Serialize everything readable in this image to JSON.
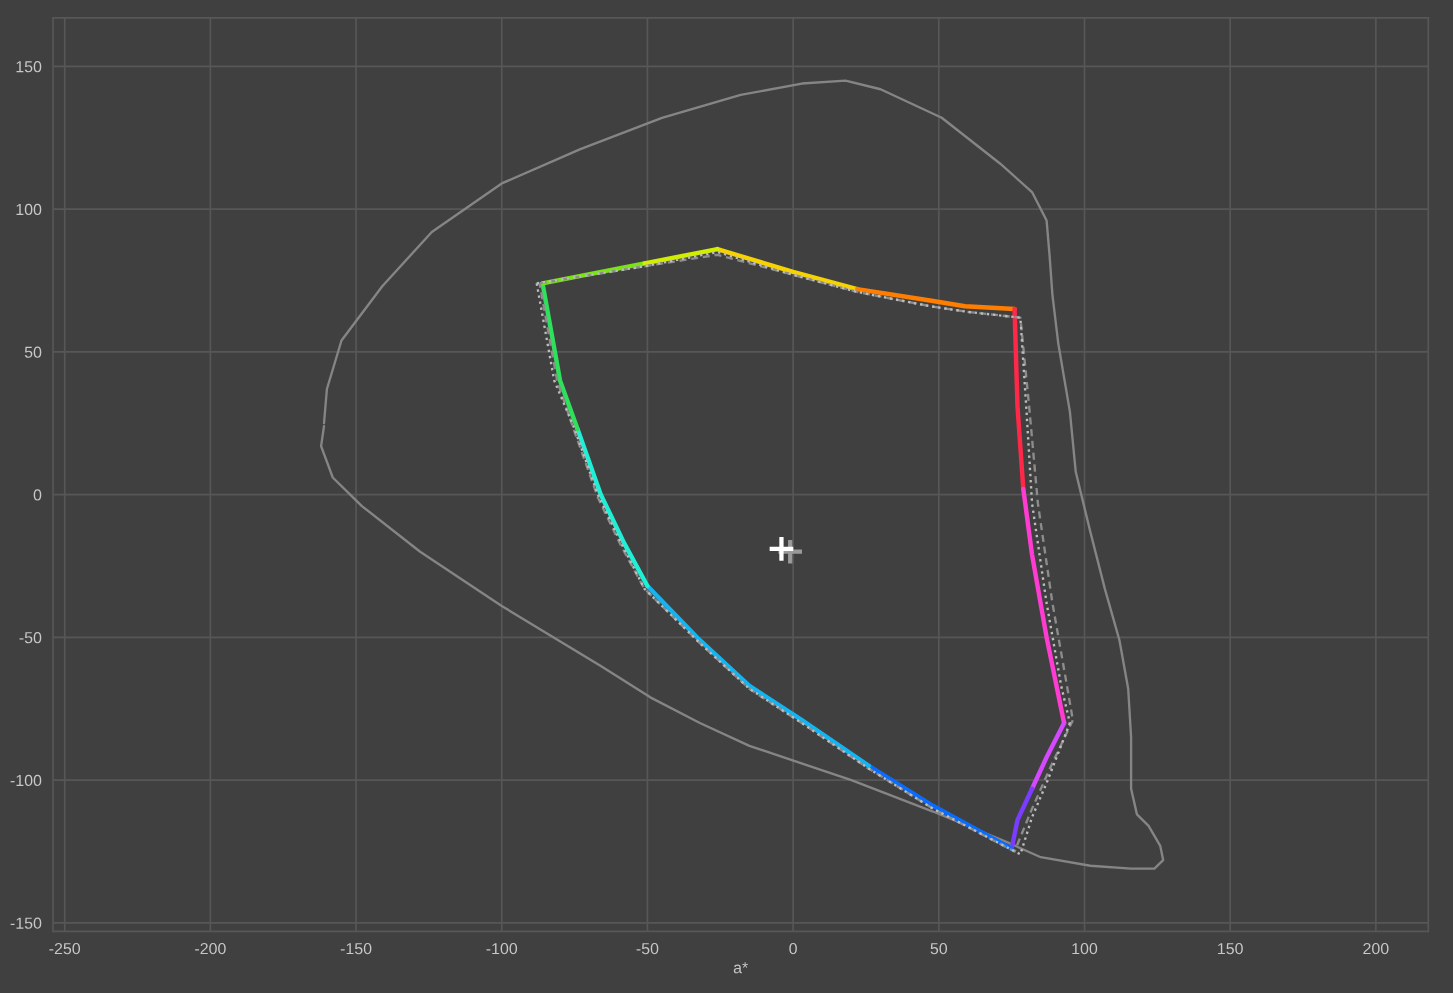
{
  "chart_data": {
    "type": "line",
    "xlabel": "a*",
    "xlim": [
      -254,
      218
    ],
    "ylim": [
      -153,
      167
    ],
    "xticks": [
      -250,
      -200,
      -150,
      -100,
      -50,
      0,
      50,
      100,
      150,
      200
    ],
    "yticks": [
      -150,
      -100,
      -50,
      0,
      50,
      100,
      150
    ],
    "grid": true,
    "series": [
      {
        "color": "#858585",
        "line_style": "solid",
        "x": [
          -161,
          -160,
          -155,
          -141,
          -124,
          -100,
          -73,
          -45,
          -18,
          3,
          18,
          30,
          51,
          71,
          82,
          87,
          88,
          89,
          91,
          95,
          97,
          102,
          107,
          112,
          115,
          116,
          116,
          118,
          122,
          126,
          127,
          124,
          116,
          102,
          85,
          74,
          48,
          20,
          -15,
          -32,
          -49,
          -66,
          -100,
          -128,
          -148,
          -158,
          -162,
          -161
        ],
        "values": [
          25,
          37,
          54,
          73,
          92,
          109,
          121,
          132,
          140,
          144,
          145,
          142,
          132,
          116,
          106,
          96,
          84,
          70,
          53,
          29,
          8,
          -13,
          -33,
          -51,
          -68,
          -85,
          -103,
          -112,
          -116,
          -123,
          -128,
          -131,
          -131,
          -130,
          -127,
          -122,
          -111,
          -100,
          -88,
          -80,
          -71,
          -60,
          -39,
          -20,
          -4,
          6,
          17,
          24
        ]
      },
      {
        "color": "#f5d200",
        "line_style": "solid",
        "x": [
          -26,
          0,
          22
        ],
        "values": [
          86,
          78,
          72
        ]
      },
      {
        "color": "#ff7e00",
        "line_style": "solid",
        "x": [
          22,
          47,
          59,
          76
        ],
        "values": [
          72,
          68,
          66,
          65
        ]
      },
      {
        "color": "#ff2848",
        "line_style": "solid",
        "x": [
          76,
          77,
          79
        ],
        "values": [
          65,
          31,
          2
        ]
      },
      {
        "color": "#ff3cd2",
        "line_style": "solid",
        "x": [
          79,
          82,
          87,
          93
        ],
        "values": [
          2,
          -21,
          -50,
          -80
        ]
      },
      {
        "color": "#d448ff",
        "line_style": "solid",
        "x": [
          93,
          87,
          82
        ],
        "values": [
          -80,
          -92,
          -103
        ]
      },
      {
        "color": "#7a3cff",
        "line_style": "solid",
        "x": [
          82,
          77,
          75
        ],
        "values": [
          -103,
          -114,
          -124
        ]
      },
      {
        "color": "#0a6cff",
        "line_style": "solid",
        "x": [
          75,
          48,
          26
        ],
        "values": [
          -124,
          -109,
          -95
        ]
      },
      {
        "color": "#12b4f2",
        "line_style": "solid",
        "x": [
          26,
          3,
          -15,
          -32,
          -50
        ],
        "values": [
          -95,
          -79,
          -67,
          -51,
          -32
        ]
      },
      {
        "color": "#1ef0d6",
        "line_style": "solid",
        "x": [
          -50,
          -58,
          -66,
          -74
        ],
        "values": [
          -32,
          -17,
          0,
          23
        ]
      },
      {
        "color": "#2ee05a",
        "line_style": "solid",
        "x": [
          -74,
          -80,
          -83,
          -86
        ],
        "values": [
          23,
          40,
          57,
          74
        ]
      },
      {
        "color": "#78e414",
        "line_style": "solid",
        "x": [
          -86,
          -51
        ],
        "values": [
          74,
          81
        ]
      },
      {
        "color": "#d2ee00",
        "line_style": "solid",
        "x": [
          -51,
          -26
        ],
        "values": [
          81,
          86
        ]
      },
      {
        "color": "#8c8c8c",
        "line_style": "dashed",
        "x": [
          -87,
          -51,
          -26,
          0,
          22,
          47,
          60,
          78,
          81,
          84,
          89,
          94,
          96
        ],
        "values": [
          74,
          80,
          84,
          77,
          71,
          66,
          64,
          62,
          31,
          -3,
          -38,
          -67,
          -79
        ]
      },
      {
        "color": "#8c8c8c",
        "line_style": "dashed",
        "x": [
          96,
          89,
          82,
          76,
          48,
          26,
          3,
          -15,
          -32,
          -51,
          -59,
          -67,
          -75,
          -81,
          -84,
          -87
        ],
        "values": [
          -79,
          -94,
          -110,
          -125,
          -110,
          -96,
          -80,
          -68,
          -52,
          -33,
          -18,
          -1,
          22,
          40,
          57,
          74
        ]
      },
      {
        "color": "#bdbdbd",
        "line_style": "dotted",
        "x": [
          -88,
          -51,
          -26,
          0,
          22,
          47,
          60,
          78,
          80,
          82,
          87,
          92,
          95
        ],
        "values": [
          74,
          80,
          85,
          77,
          71,
          66,
          64,
          62,
          31,
          -3,
          -38,
          -67,
          -80
        ]
      },
      {
        "color": "#bdbdbd",
        "line_style": "dotted",
        "x": [
          95,
          87,
          82,
          78,
          48,
          26,
          3,
          -15,
          -32,
          -51,
          -59,
          -67,
          -75,
          -82,
          -85,
          -88
        ],
        "values": [
          -80,
          -101,
          -113,
          -126,
          -110,
          -96,
          -80,
          -68,
          -52,
          -33,
          -17,
          0,
          23,
          40,
          57,
          74
        ]
      },
      {
        "type": "scatter",
        "color": "#9a9a9a",
        "marker": "cross",
        "x": [
          -1
        ],
        "values": [
          -20
        ]
      },
      {
        "type": "scatter",
        "color": "#ffffff",
        "marker": "cross",
        "x": [
          -4
        ],
        "values": [
          -19
        ]
      }
    ]
  }
}
